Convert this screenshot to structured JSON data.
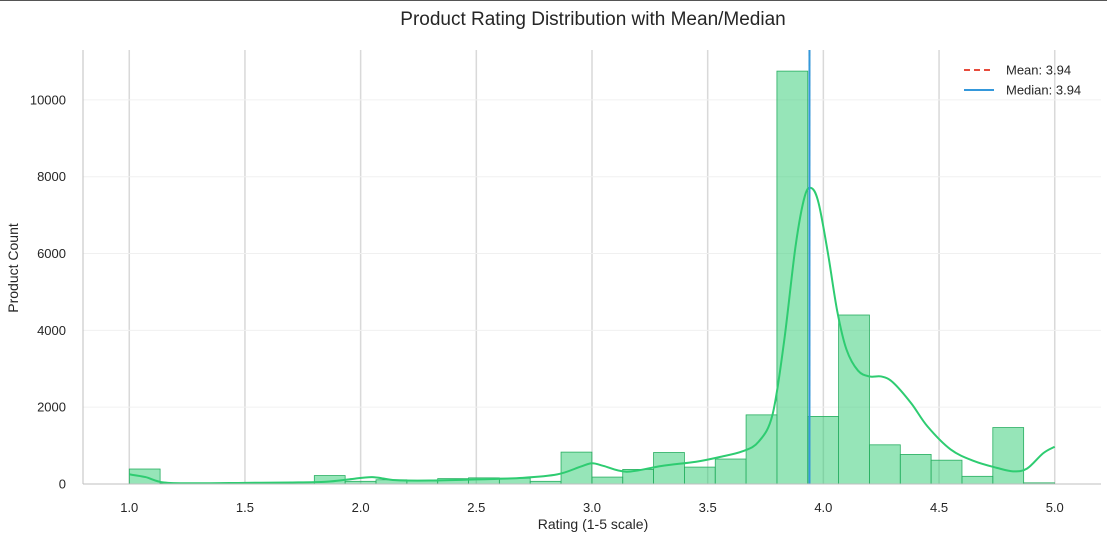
{
  "chart_data": {
    "type": "bar",
    "title": "Product Rating Distribution with Mean/Median",
    "xlabel": "Rating (1-5 scale)",
    "ylabel": "Product Count",
    "xlim": [
      0.8,
      5.2
    ],
    "ylim": [
      0,
      11300
    ],
    "xticks": [
      "1.0",
      "1.5",
      "2.0",
      "2.5",
      "3.0",
      "3.5",
      "4.0",
      "4.5",
      "5.0"
    ],
    "xtick_values": [
      1.0,
      1.5,
      2.0,
      2.5,
      3.0,
      3.5,
      4.0,
      4.5,
      5.0
    ],
    "yticks": [
      "0",
      "2000",
      "4000",
      "6000",
      "8000",
      "10000"
    ],
    "ytick_values": [
      0,
      2000,
      4000,
      6000,
      8000,
      10000
    ],
    "bin_start": 1.0,
    "bin_width": 0.1333,
    "histogram_counts": [
      390,
      20,
      20,
      30,
      40,
      40,
      220,
      70,
      110,
      80,
      140,
      160,
      150,
      70,
      830,
      180,
      380,
      820,
      440,
      650,
      1800,
      10750,
      1760,
      4400,
      1020,
      770,
      620,
      200,
      1470,
      30
    ],
    "kde": {
      "x": [
        1.0,
        1.07,
        1.15,
        1.3,
        1.5,
        1.7,
        1.85,
        1.95,
        2.05,
        2.15,
        2.3,
        2.5,
        2.7,
        2.85,
        2.95,
        3.0,
        3.05,
        3.15,
        3.3,
        3.45,
        3.55,
        3.65,
        3.72,
        3.78,
        3.83,
        3.88,
        3.92,
        3.95,
        3.98,
        4.02,
        4.06,
        4.1,
        4.15,
        4.2,
        4.25,
        4.3,
        4.38,
        4.45,
        4.55,
        4.65,
        4.75,
        4.82,
        4.88,
        4.95,
        5.0
      ],
      "y": [
        250,
        180,
        40,
        20,
        30,
        40,
        60,
        120,
        180,
        100,
        90,
        120,
        160,
        250,
        450,
        540,
        470,
        320,
        470,
        580,
        700,
        850,
        1100,
        1800,
        3700,
        6200,
        7500,
        7700,
        7300,
        6000,
        4500,
        3500,
        2950,
        2800,
        2800,
        2650,
        2100,
        1500,
        900,
        600,
        420,
        330,
        400,
        800,
        970
      ]
    },
    "mean": 3.94,
    "median": 3.94,
    "legend": [
      {
        "label": "Mean: 3.94",
        "color": "#e74c3c",
        "style": "dashed"
      },
      {
        "label": "Median: 3.94",
        "color": "#3498db",
        "style": "solid"
      }
    ],
    "legend_position": "top-right",
    "bar_color": "#2ecc71",
    "grid": true
  }
}
